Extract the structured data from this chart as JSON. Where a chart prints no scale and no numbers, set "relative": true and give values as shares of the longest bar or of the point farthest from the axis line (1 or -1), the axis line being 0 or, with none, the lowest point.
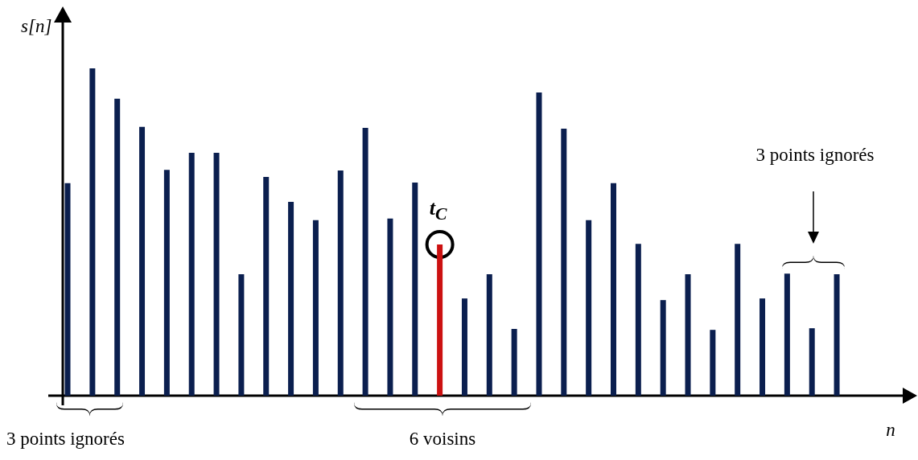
{
  "chart_data": {
    "type": "bar",
    "relative": true,
    "xlabel": "n",
    "ylabel": "s[n]",
    "categories": [
      null,
      null,
      null,
      null,
      null,
      null,
      null,
      null,
      null,
      null,
      null,
      null,
      null,
      null,
      null,
      null,
      null,
      null,
      null,
      null,
      null,
      null,
      null,
      null,
      null,
      null,
      null,
      null,
      null,
      null,
      null,
      null
    ],
    "values": [
      0.649,
      1,
      0.907,
      0.821,
      0.69,
      0.742,
      0.742,
      0.371,
      0.668,
      0.592,
      0.536,
      0.688,
      0.818,
      0.541,
      0.651,
      0.462,
      0.297,
      0.371,
      0.204,
      0.926,
      0.816,
      0.536,
      0.649,
      0.464,
      0.292,
      0.371,
      0.201,
      0.464,
      0.297,
      0.373,
      0.206,
      0.371
    ],
    "colors": [
      "#0b1f4f",
      "#0b1f4f",
      "#0b1f4f",
      "#0b1f4f",
      "#0b1f4f",
      "#0b1f4f",
      "#0b1f4f",
      "#0b1f4f",
      "#0b1f4f",
      "#0b1f4f",
      "#0b1f4f",
      "#0b1f4f",
      "#0b1f4f",
      "#0b1f4f",
      "#0b1f4f",
      "#cc1111",
      "#0b1f4f",
      "#0b1f4f",
      "#0b1f4f",
      "#0b1f4f",
      "#0b1f4f",
      "#0b1f4f",
      "#0b1f4f",
      "#0b1f4f",
      "#0b1f4f",
      "#0b1f4f",
      "#0b1f4f",
      "#0b1f4f",
      "#0b1f4f",
      "#0b1f4f",
      "#0b1f4f",
      "#0b1f4f"
    ],
    "annotations": [
      "3 points ignorés",
      "6 voisins",
      "3 points ignorés",
      "t$_{C}$"
    ]
  }
}
